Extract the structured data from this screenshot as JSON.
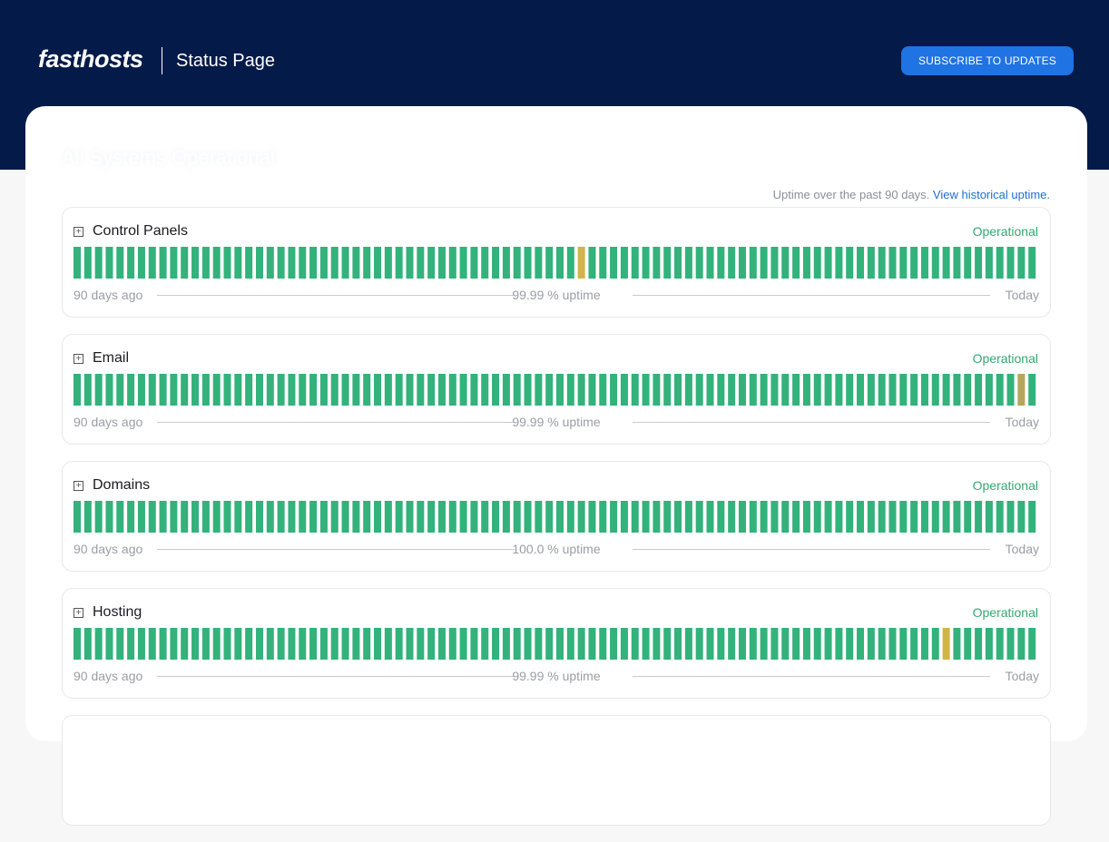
{
  "header": {
    "logo": "fasthosts",
    "page_label": "Status Page",
    "subscribe_label": "SUBSCRIBE TO UPDATES"
  },
  "overall_status": "All Systems Operational",
  "uptime_note": {
    "text": "Uptime over the past 90 days. ",
    "link": "View historical uptime."
  },
  "colors": {
    "operational": "#33b27b",
    "degraded": "#d1b548",
    "partial": "#b6a65c"
  },
  "components": [
    {
      "name": "Control Panels",
      "status": "Operational",
      "uptime": "99.99 % uptime",
      "start_label": "90 days ago",
      "end_label": "Today",
      "incidents": [
        {
          "day": 47,
          "level": "degraded"
        }
      ]
    },
    {
      "name": "Email",
      "status": "Operational",
      "uptime": "99.99 % uptime",
      "start_label": "90 days ago",
      "end_label": "Today",
      "incidents": [
        {
          "day": 88,
          "level": "partial"
        }
      ]
    },
    {
      "name": "Domains",
      "status": "Operational",
      "uptime": "100.0 % uptime",
      "start_label": "90 days ago",
      "end_label": "Today",
      "incidents": []
    },
    {
      "name": "Hosting",
      "status": "Operational",
      "uptime": "99.99 % uptime",
      "start_label": "90 days ago",
      "end_label": "Today",
      "incidents": [
        {
          "day": 81,
          "level": "degraded"
        }
      ]
    }
  ]
}
